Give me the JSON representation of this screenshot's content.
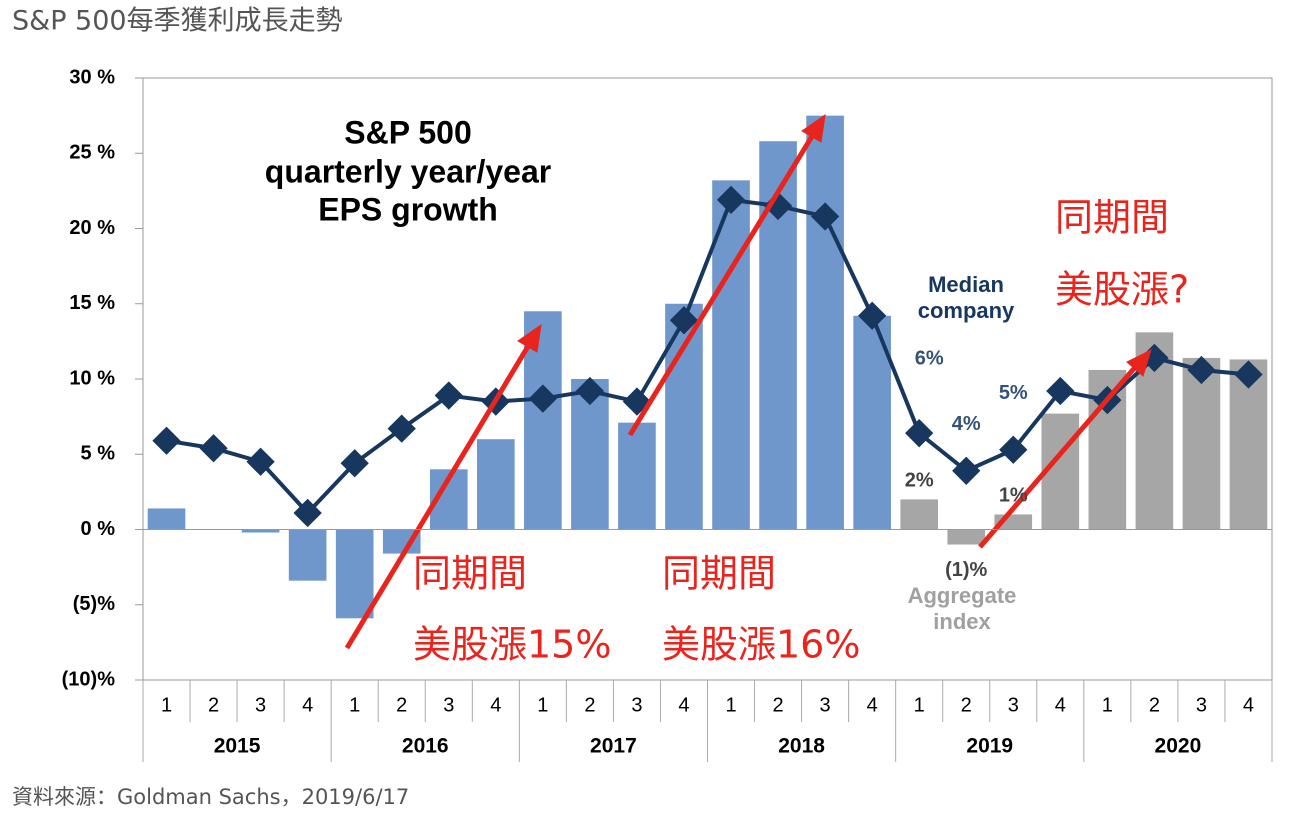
{
  "chart_data": {
    "type": "bar",
    "title": "S&P 500每季獲利成長走勢",
    "chart_title_lines": [
      "S&P 500",
      "quarterly year/year",
      "EPS growth"
    ],
    "source": "資料來源：Goldman Sachs，2019/6/17",
    "categories": [
      "1",
      "2",
      "3",
      "4",
      "1",
      "2",
      "3",
      "4",
      "1",
      "2",
      "3",
      "4",
      "1",
      "2",
      "3",
      "4",
      "1",
      "2",
      "3",
      "4",
      "1",
      "2",
      "3",
      "4"
    ],
    "years": [
      "2015",
      "2016",
      "2017",
      "2018",
      "2019",
      "2020"
    ],
    "ylim": [
      -10,
      30
    ],
    "yticks": [
      {
        "value": -10,
        "label": "(10)%"
      },
      {
        "value": -5,
        "label": "(5)%"
      },
      {
        "value": 0,
        "label": "0 %"
      },
      {
        "value": 5,
        "label": "5 %"
      },
      {
        "value": 10,
        "label": "10 %"
      },
      {
        "value": 15,
        "label": "15 %"
      },
      {
        "value": 20,
        "label": "20 %"
      },
      {
        "value": 25,
        "label": "25 %"
      },
      {
        "value": 30,
        "label": "30 %"
      }
    ],
    "series": [
      {
        "name": "Aggregate index",
        "type": "bar",
        "colors": [
          "#6f97cc",
          "#6f97cc",
          "#6f97cc",
          "#6f97cc",
          "#6f97cc",
          "#6f97cc",
          "#6f97cc",
          "#6f97cc",
          "#6f97cc",
          "#6f97cc",
          "#6f97cc",
          "#6f97cc",
          "#6f97cc",
          "#6f97cc",
          "#6f97cc",
          "#6f97cc",
          "#a6a6a6",
          "#a6a6a6",
          "#a6a6a6",
          "#a6a6a6",
          "#a6a6a6",
          "#a6a6a6",
          "#a6a6a6",
          "#a6a6a6"
        ],
        "values": [
          1.4,
          0,
          -0.2,
          -3.4,
          -5.9,
          -1.6,
          4.0,
          6.0,
          14.5,
          10.0,
          7.1,
          15.0,
          23.2,
          25.8,
          27.5,
          14.2,
          2,
          -1,
          1,
          7.7,
          10.6,
          13.1,
          11.4,
          11.3
        ],
        "value_labels": [
          null,
          null,
          null,
          null,
          null,
          null,
          null,
          null,
          null,
          null,
          null,
          null,
          null,
          null,
          null,
          null,
          "2%",
          "(1)%",
          "1%",
          null,
          null,
          null,
          null,
          null
        ]
      },
      {
        "name": "Median company",
        "type": "line",
        "color": "#17375e",
        "values": [
          5.9,
          5.4,
          4.5,
          1.1,
          4.4,
          6.7,
          8.9,
          8.5,
          8.7,
          9.2,
          8.5,
          13.9,
          21.9,
          21.5,
          20.8,
          14.2,
          6.4,
          3.9,
          5.3,
          9.2,
          8.6,
          11.4,
          10.6,
          10.3
        ],
        "value_labels": [
          null,
          null,
          null,
          null,
          null,
          null,
          null,
          null,
          null,
          null,
          null,
          null,
          null,
          null,
          null,
          null,
          "6%",
          "4%",
          "5%",
          null,
          null,
          null,
          null,
          null
        ]
      }
    ],
    "annotations": [
      {
        "lines": [
          "同期間",
          "美股漲15%"
        ]
      },
      {
        "lines": [
          "同期間",
          "美股漲16%"
        ]
      },
      {
        "lines": [
          "同期間",
          "美股漲?"
        ]
      }
    ]
  }
}
